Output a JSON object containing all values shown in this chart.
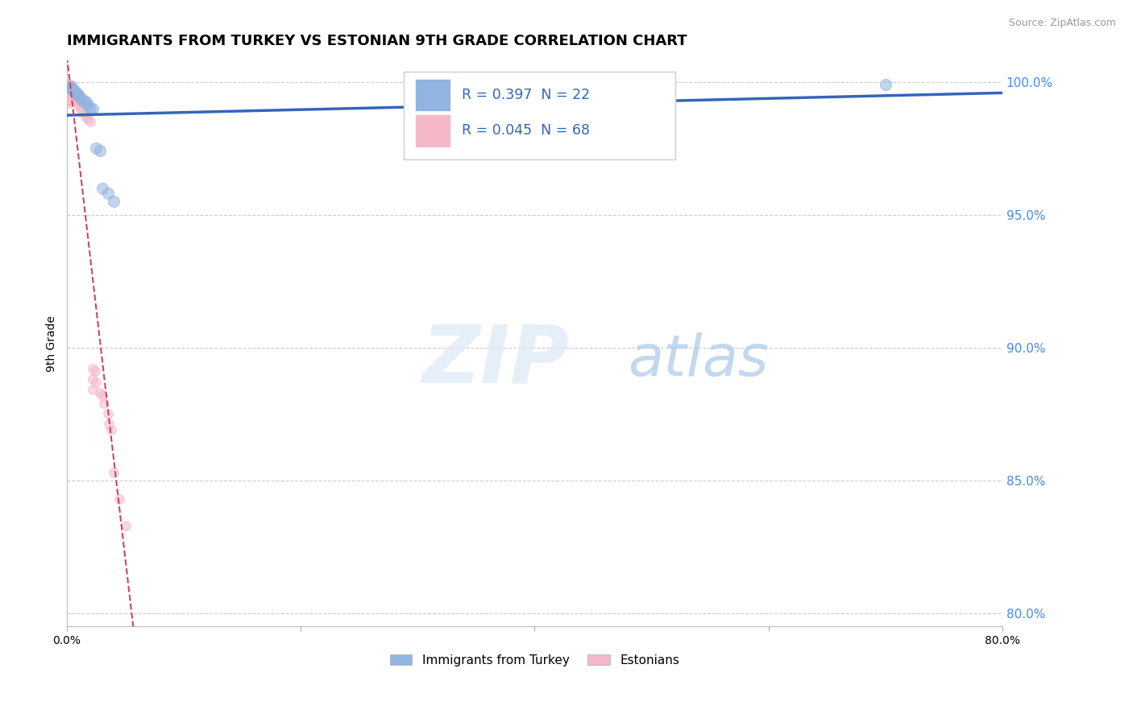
{
  "title": "IMMIGRANTS FROM TURKEY VS ESTONIAN 9TH GRADE CORRELATION CHART",
  "source": "Source: ZipAtlas.com",
  "ylabel": "9th Grade",
  "xlim": [
    0.0,
    0.8
  ],
  "ylim": [
    0.795,
    1.008
  ],
  "xticks": [
    0.0,
    0.2,
    0.4,
    0.6,
    0.8
  ],
  "xtick_labels": [
    "0.0%",
    "",
    "",
    "",
    "80.0%"
  ],
  "yticks": [
    0.8,
    0.85,
    0.9,
    0.95,
    1.0
  ],
  "ytick_labels_right": [
    "80.0%",
    "85.0%",
    "90.0%",
    "95.0%",
    "100.0%"
  ],
  "blue_R": 0.397,
  "blue_N": 22,
  "pink_R": 0.045,
  "pink_N": 68,
  "legend_label_blue": "Immigrants from Turkey",
  "legend_label_pink": "Estonians",
  "blue_color": "#92b4e0",
  "pink_color": "#f5b8c8",
  "blue_line_color": "#3366bb",
  "pink_line_color": "#cc4466",
  "blue_scatter": [
    [
      0.002,
      0.998
    ],
    [
      0.003,
      0.998
    ],
    [
      0.004,
      0.998
    ],
    [
      0.005,
      0.997
    ],
    [
      0.006,
      0.997
    ],
    [
      0.007,
      0.996
    ],
    [
      0.008,
      0.996
    ],
    [
      0.009,
      0.995
    ],
    [
      0.01,
      0.995
    ],
    [
      0.012,
      0.994
    ],
    [
      0.013,
      0.993
    ],
    [
      0.015,
      0.993
    ],
    [
      0.017,
      0.992
    ],
    [
      0.018,
      0.991
    ],
    [
      0.02,
      0.99
    ],
    [
      0.022,
      0.99
    ],
    [
      0.025,
      0.975
    ],
    [
      0.028,
      0.974
    ],
    [
      0.03,
      0.96
    ],
    [
      0.035,
      0.958
    ],
    [
      0.04,
      0.955
    ],
    [
      0.7,
      0.999
    ]
  ],
  "pink_scatter": [
    [
      0.001,
      0.999
    ],
    [
      0.001,
      0.999
    ],
    [
      0.001,
      0.998
    ],
    [
      0.001,
      0.998
    ],
    [
      0.001,
      0.997
    ],
    [
      0.001,
      0.997
    ],
    [
      0.001,
      0.996
    ],
    [
      0.001,
      0.996
    ],
    [
      0.001,
      0.995
    ],
    [
      0.001,
      0.995
    ],
    [
      0.001,
      0.994
    ],
    [
      0.001,
      0.993
    ],
    [
      0.002,
      0.999
    ],
    [
      0.002,
      0.998
    ],
    [
      0.002,
      0.997
    ],
    [
      0.002,
      0.997
    ],
    [
      0.002,
      0.996
    ],
    [
      0.002,
      0.995
    ],
    [
      0.002,
      0.994
    ],
    [
      0.002,
      0.993
    ],
    [
      0.002,
      0.992
    ],
    [
      0.003,
      0.999
    ],
    [
      0.003,
      0.998
    ],
    [
      0.003,
      0.997
    ],
    [
      0.003,
      0.996
    ],
    [
      0.003,
      0.995
    ],
    [
      0.003,
      0.994
    ],
    [
      0.003,
      0.993
    ],
    [
      0.004,
      0.998
    ],
    [
      0.004,
      0.997
    ],
    [
      0.004,
      0.996
    ],
    [
      0.004,
      0.995
    ],
    [
      0.004,
      0.994
    ],
    [
      0.005,
      0.997
    ],
    [
      0.005,
      0.996
    ],
    [
      0.005,
      0.995
    ],
    [
      0.005,
      0.994
    ],
    [
      0.006,
      0.996
    ],
    [
      0.006,
      0.995
    ],
    [
      0.006,
      0.994
    ],
    [
      0.007,
      0.995
    ],
    [
      0.007,
      0.994
    ],
    [
      0.007,
      0.993
    ],
    [
      0.008,
      0.994
    ],
    [
      0.008,
      0.993
    ],
    [
      0.009,
      0.993
    ],
    [
      0.01,
      0.992
    ],
    [
      0.01,
      0.991
    ],
    [
      0.012,
      0.99
    ],
    [
      0.013,
      0.989
    ],
    [
      0.015,
      0.988
    ],
    [
      0.016,
      0.987
    ],
    [
      0.018,
      0.986
    ],
    [
      0.02,
      0.985
    ],
    [
      0.022,
      0.892
    ],
    [
      0.022,
      0.888
    ],
    [
      0.022,
      0.884
    ],
    [
      0.024,
      0.891
    ],
    [
      0.025,
      0.887
    ],
    [
      0.028,
      0.883
    ],
    [
      0.03,
      0.882
    ],
    [
      0.032,
      0.879
    ],
    [
      0.035,
      0.875
    ],
    [
      0.036,
      0.871
    ],
    [
      0.038,
      0.869
    ],
    [
      0.04,
      0.853
    ],
    [
      0.045,
      0.843
    ],
    [
      0.05,
      0.833
    ]
  ],
  "watermark_zip": "ZIP",
  "watermark_atlas": "atlas",
  "background_color": "#ffffff",
  "grid_color": "#cccccc",
  "title_fontsize": 13,
  "axis_label_fontsize": 10,
  "tick_fontsize": 10,
  "right_tick_color": "#4488ee",
  "scatter_size_blue": 100,
  "scatter_size_pink": 70
}
